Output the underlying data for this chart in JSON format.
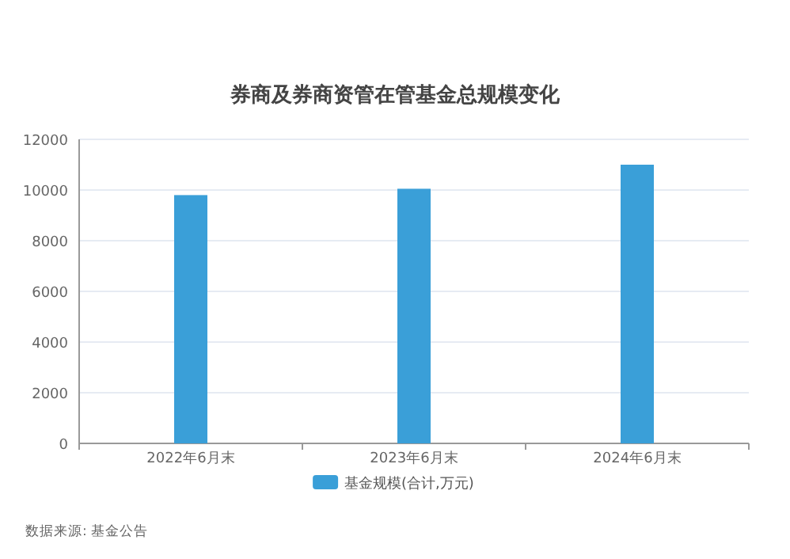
{
  "chart_data": {
    "type": "bar",
    "title": "券商及券商资管在管基金总规模变化",
    "categories": [
      "2022年6月末",
      "2023年6月末",
      "2024年6月末"
    ],
    "series": [
      {
        "name": "基金规模(合计,万元)",
        "color": "#3a9fd8",
        "values": [
          9800,
          10050,
          11000
        ]
      }
    ],
    "ylim": [
      0,
      12000
    ],
    "yticks": [
      0,
      2000,
      4000,
      6000,
      8000,
      10000,
      12000
    ],
    "grid": "y",
    "legend": "bottom",
    "annotations": [
      "数据来源: 基金公告"
    ]
  }
}
